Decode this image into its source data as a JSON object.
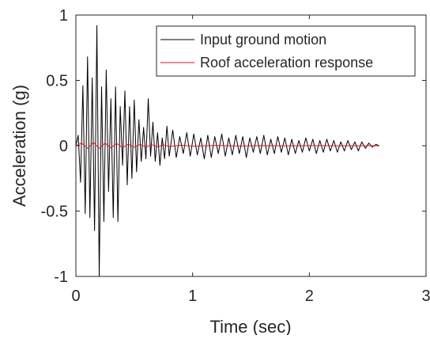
{
  "chart_data": {
    "type": "line",
    "xlabel": "Time (sec)",
    "ylabel": "Acceleration (g)",
    "xlim": [
      0,
      3
    ],
    "ylim": [
      -1,
      1
    ],
    "xticks": [
      0,
      1,
      2,
      3
    ],
    "xtick_labels": [
      "0",
      "1",
      "2",
      "3"
    ],
    "yticks": [
      -1,
      -0.5,
      0,
      0.5,
      1
    ],
    "ytick_labels": [
      "-1",
      "-0.5",
      "0",
      "0.5",
      "1"
    ],
    "grid": false,
    "legend_position": "top-right",
    "series": [
      {
        "name": "Input ground motion",
        "color": "#000000",
        "x": [
          0.0,
          0.02,
          0.04,
          0.06,
          0.08,
          0.1,
          0.12,
          0.14,
          0.16,
          0.18,
          0.2,
          0.22,
          0.24,
          0.26,
          0.28,
          0.3,
          0.32,
          0.34,
          0.36,
          0.38,
          0.4,
          0.42,
          0.44,
          0.46,
          0.48,
          0.5,
          0.52,
          0.54,
          0.56,
          0.58,
          0.6,
          0.62,
          0.64,
          0.66,
          0.68,
          0.7,
          0.72,
          0.74,
          0.76,
          0.78,
          0.8,
          0.83,
          0.86,
          0.89,
          0.92,
          0.95,
          0.98,
          1.01,
          1.04,
          1.07,
          1.1,
          1.13,
          1.16,
          1.19,
          1.22,
          1.25,
          1.28,
          1.31,
          1.34,
          1.37,
          1.4,
          1.43,
          1.46,
          1.49,
          1.52,
          1.55,
          1.58,
          1.61,
          1.64,
          1.67,
          1.7,
          1.73,
          1.76,
          1.79,
          1.82,
          1.85,
          1.88,
          1.91,
          1.94,
          1.97,
          2.0,
          2.03,
          2.06,
          2.09,
          2.12,
          2.15,
          2.18,
          2.21,
          2.24,
          2.27,
          2.3,
          2.33,
          2.36,
          2.39,
          2.42,
          2.45,
          2.48,
          2.51,
          2.54,
          2.57,
          2.6
        ],
        "y": [
          0,
          0.08,
          -0.28,
          0.46,
          -0.52,
          0.68,
          -0.55,
          0.52,
          -0.65,
          0.92,
          -1.0,
          0.45,
          -0.58,
          0.58,
          -0.35,
          0.36,
          -0.55,
          0.45,
          -0.58,
          0.3,
          -0.15,
          0.42,
          -0.3,
          0.3,
          -0.25,
          0.35,
          -0.2,
          0.2,
          -0.12,
          0.14,
          -0.1,
          0.36,
          -0.08,
          0.18,
          -0.12,
          0.1,
          -0.15,
          0.06,
          -0.1,
          0.15,
          -0.08,
          0.12,
          -0.09,
          0.07,
          -0.06,
          0.1,
          -0.08,
          0.09,
          -0.07,
          0.06,
          -0.1,
          0.08,
          -0.09,
          0.07,
          -0.06,
          0.09,
          -0.08,
          0.06,
          -0.07,
          0.08,
          -0.06,
          0.07,
          -0.09,
          0.06,
          -0.05,
          0.07,
          -0.06,
          0.08,
          -0.07,
          0.05,
          -0.06,
          0.07,
          -0.05,
          0.06,
          -0.07,
          0.05,
          -0.06,
          0.04,
          -0.05,
          0.06,
          -0.04,
          0.05,
          -0.06,
          0.04,
          -0.05,
          0.05,
          -0.04,
          0.04,
          -0.05,
          0.03,
          -0.04,
          0.04,
          -0.03,
          0.03,
          -0.04,
          0.03,
          -0.02,
          0.02,
          -0.01,
          0.01,
          0
        ]
      },
      {
        "name": "Roof acceleration response",
        "color": "#e8121a",
        "x": [
          0.0,
          0.05,
          0.1,
          0.15,
          0.2,
          0.25,
          0.3,
          0.35,
          0.4,
          0.45,
          0.5,
          0.55,
          0.6,
          0.65,
          0.7,
          0.75,
          0.8,
          0.9,
          1.0,
          1.2,
          1.4,
          1.6,
          1.8,
          2.0,
          2.2,
          2.4,
          2.6
        ],
        "y": [
          0,
          0.02,
          -0.02,
          0.025,
          -0.02,
          0.02,
          -0.015,
          0.018,
          -0.015,
          0.012,
          -0.012,
          0.01,
          -0.01,
          0.008,
          -0.008,
          0.006,
          -0.005,
          0.004,
          -0.003,
          0.002,
          -0.002,
          0.001,
          -0.001,
          0.001,
          0,
          0,
          0
        ]
      }
    ]
  }
}
